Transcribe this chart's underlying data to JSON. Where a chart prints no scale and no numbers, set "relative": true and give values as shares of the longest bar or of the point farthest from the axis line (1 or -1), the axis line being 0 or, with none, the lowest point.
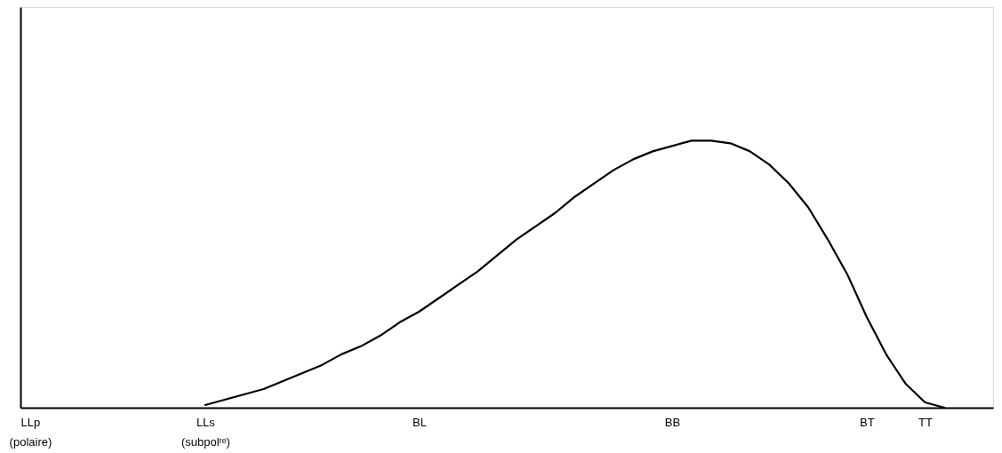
{
  "chart_data": {
    "type": "line",
    "relative": true,
    "grid": false,
    "marker": "none",
    "line_style": "solid",
    "categories": [
      "LLp\n(polaire)",
      null,
      null,
      null,
      null,
      null,
      null,
      null,
      null,
      "LLs\n(subpolʳᵉ)",
      null,
      null,
      null,
      null,
      null,
      null,
      null,
      null,
      null,
      null,
      "BL",
      null,
      null,
      null,
      null,
      null,
      null,
      null,
      null,
      null,
      null,
      null,
      null,
      "BB",
      null,
      null,
      null,
      null,
      null,
      null,
      null,
      null,
      null,
      "BT",
      null,
      null,
      "TT",
      null,
      null,
      null
    ],
    "series": [
      {
        "color": "#000000",
        "values": [
          null,
          null,
          null,
          null,
          null,
          null,
          null,
          null,
          null,
          0.01,
          0.03,
          0.05,
          0.07,
          0.1,
          0.13,
          0.16,
          0.2,
          0.23,
          0.27,
          0.32,
          0.36,
          0.41,
          0.46,
          0.51,
          0.57,
          0.63,
          0.68,
          0.73,
          0.79,
          0.84,
          0.89,
          0.93,
          0.96,
          0.98,
          1.0,
          1.0,
          0.99,
          0.96,
          0.91,
          0.84,
          0.75,
          0.63,
          0.5,
          0.34,
          0.2,
          0.09,
          0.02,
          0.0,
          null,
          null
        ]
      }
    ]
  }
}
